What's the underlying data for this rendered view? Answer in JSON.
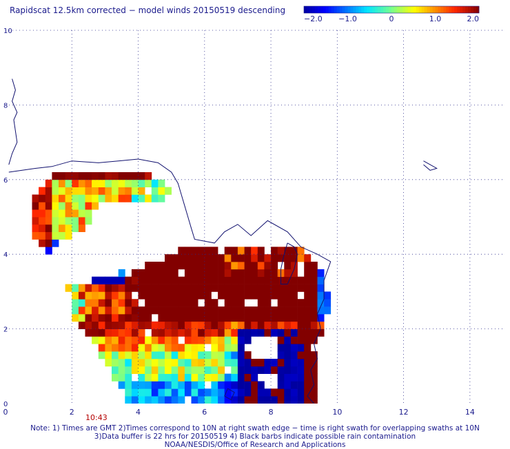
{
  "title": "Rapidscat 12.5km corrected − model winds 20150519 descending",
  "time_label": "10:43",
  "notes": [
    "Note: 1) Times are GMT 2)Times correspond to 10N at right swath edge − time is right swath for overlapping swaths at 10N",
    "3)Data buffer is 22 hrs for 20150519 4) Black barbs indicate possible rain contamination",
    "NOAA/NESDIS/Office of Research and Applications"
  ],
  "colors": {
    "axis_text": "#1a1a8c",
    "coast": "#10106e",
    "time": "#b40000"
  },
  "chart_data": {
    "type": "heatmap",
    "title": "Rapidscat 12.5km corrected − model winds 20150519 descending",
    "xlabel": "",
    "ylabel": "",
    "xlim": [
      0,
      15
    ],
    "ylim": [
      0,
      10
    ],
    "x_ticks": [
      0,
      2,
      4,
      6,
      8,
      10,
      12,
      14
    ],
    "y_ticks": [
      0,
      2,
      4,
      6,
      8,
      10
    ],
    "grid": true,
    "colorbar": {
      "range": [
        -2.0,
        2.0
      ],
      "ticks": [
        "−2.0",
        "−1.0",
        "0",
        "1.0",
        "2.0"
      ],
      "tick_values": [
        -2.0,
        -1.0,
        0,
        1.0,
        2.0
      ],
      "position": "top-right"
    },
    "field_summary": "Wind speed difference field covering roughly x 0.2–10, y 0–6.2; large saturated region (≥2.0) near x 4–9.5, y 2.1–4.3; strongly negative values (≤−2.0) near x 7–9, y 0–2."
  }
}
